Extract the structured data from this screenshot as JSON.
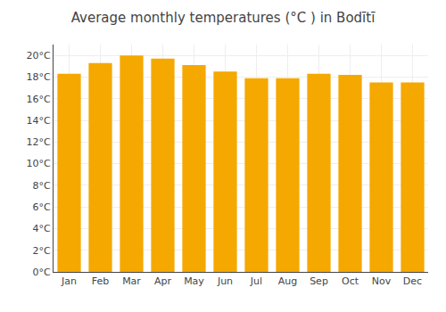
{
  "chart_data": {
    "type": "bar",
    "title": "Average monthly temperatures (°C ) in Bodītī",
    "categories": [
      "Jan",
      "Feb",
      "Mar",
      "Apr",
      "May",
      "Jun",
      "Jul",
      "Aug",
      "Sep",
      "Oct",
      "Nov",
      "Dec"
    ],
    "values": [
      18.3,
      19.3,
      20.0,
      19.7,
      19.1,
      18.5,
      17.9,
      17.9,
      18.3,
      18.2,
      17.5,
      17.5
    ],
    "color": "#F5A800",
    "ylim": [
      0,
      21
    ],
    "yticks": [
      {
        "value": 0,
        "label": "0°C"
      },
      {
        "value": 2,
        "label": "2°C"
      },
      {
        "value": 4,
        "label": "4°C"
      },
      {
        "value": 6,
        "label": "6°C"
      },
      {
        "value": 8,
        "label": "8°C"
      },
      {
        "value": 10,
        "label": "10°C"
      },
      {
        "value": 12,
        "label": "12°C"
      },
      {
        "value": 14,
        "label": "14°C"
      },
      {
        "value": 16,
        "label": "16°C"
      },
      {
        "value": 18,
        "label": "18°C"
      },
      {
        "value": 20,
        "label": "20°C"
      }
    ],
    "grid": true
  }
}
